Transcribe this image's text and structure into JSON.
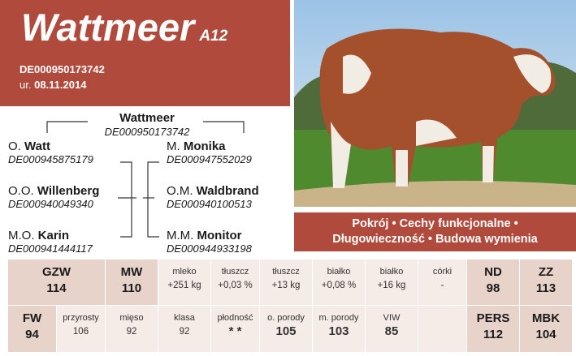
{
  "header": {
    "title": "Wattmeer",
    "suffix": "A12",
    "id": "DE000950173742",
    "birth_prefix": "ur.",
    "birth_date": "08.11.2014"
  },
  "pedigree": {
    "animal": {
      "name": "Wattmeer",
      "id": "DE000950173742"
    },
    "left": [
      {
        "prefix": "O.",
        "name": "Watt",
        "id": "DE000945875179"
      },
      {
        "prefix": "O.O.",
        "name": "Willenberg",
        "id": "DE000940049340"
      },
      {
        "prefix": "M.O.",
        "name": "Karin",
        "id": "DE000941444117"
      }
    ],
    "right": [
      {
        "prefix": "M.",
        "name": "Monika",
        "id": "DE000947552029"
      },
      {
        "prefix": "O.M.",
        "name": "Waldbrand",
        "id": "DE000940100513"
      },
      {
        "prefix": "M.M.",
        "name": "Monitor",
        "id": "DE000944933198"
      }
    ]
  },
  "traits": [
    "Pokrój • Cechy funkcjonalne •",
    "Długowieczność • Budowa wymienia"
  ],
  "table": {
    "rows": [
      [
        {
          "label": "GZW",
          "value": "114",
          "strong": true
        },
        {
          "label": "MW",
          "value": "110",
          "strong": true
        },
        {
          "label": "mleko",
          "value": "+251 kg"
        },
        {
          "label": "tłuszcz",
          "value": "+0,03 %"
        },
        {
          "label": "tłuszcz",
          "value": "+13 kg"
        },
        {
          "label": "białko",
          "value": "+0,08 %"
        },
        {
          "label": "białko",
          "value": "+16 kg"
        },
        {
          "label": "córki",
          "value": "-"
        },
        {
          "label": "ND",
          "value": "98",
          "strong": true
        },
        {
          "label": "ZZ",
          "value": "113",
          "strong": true
        }
      ],
      [
        {
          "label": "FW",
          "value": "94",
          "strong": true
        },
        {
          "label": "przyrosty",
          "value": "106"
        },
        {
          "label": "mięso",
          "value": "92"
        },
        {
          "label": "klasa",
          "value": "92"
        },
        {
          "label": "płodność",
          "value": "* *",
          "big": true
        },
        {
          "label": "o. porody",
          "value": "105",
          "big": true
        },
        {
          "label": "m. porody",
          "value": "103",
          "big": true
        },
        {
          "label": "VIW",
          "value": "85",
          "big": true
        },
        {
          "label": "PERS",
          "value": "112",
          "strong": true
        },
        {
          "label": "MBK",
          "value": "104",
          "strong": true
        }
      ]
    ]
  }
}
